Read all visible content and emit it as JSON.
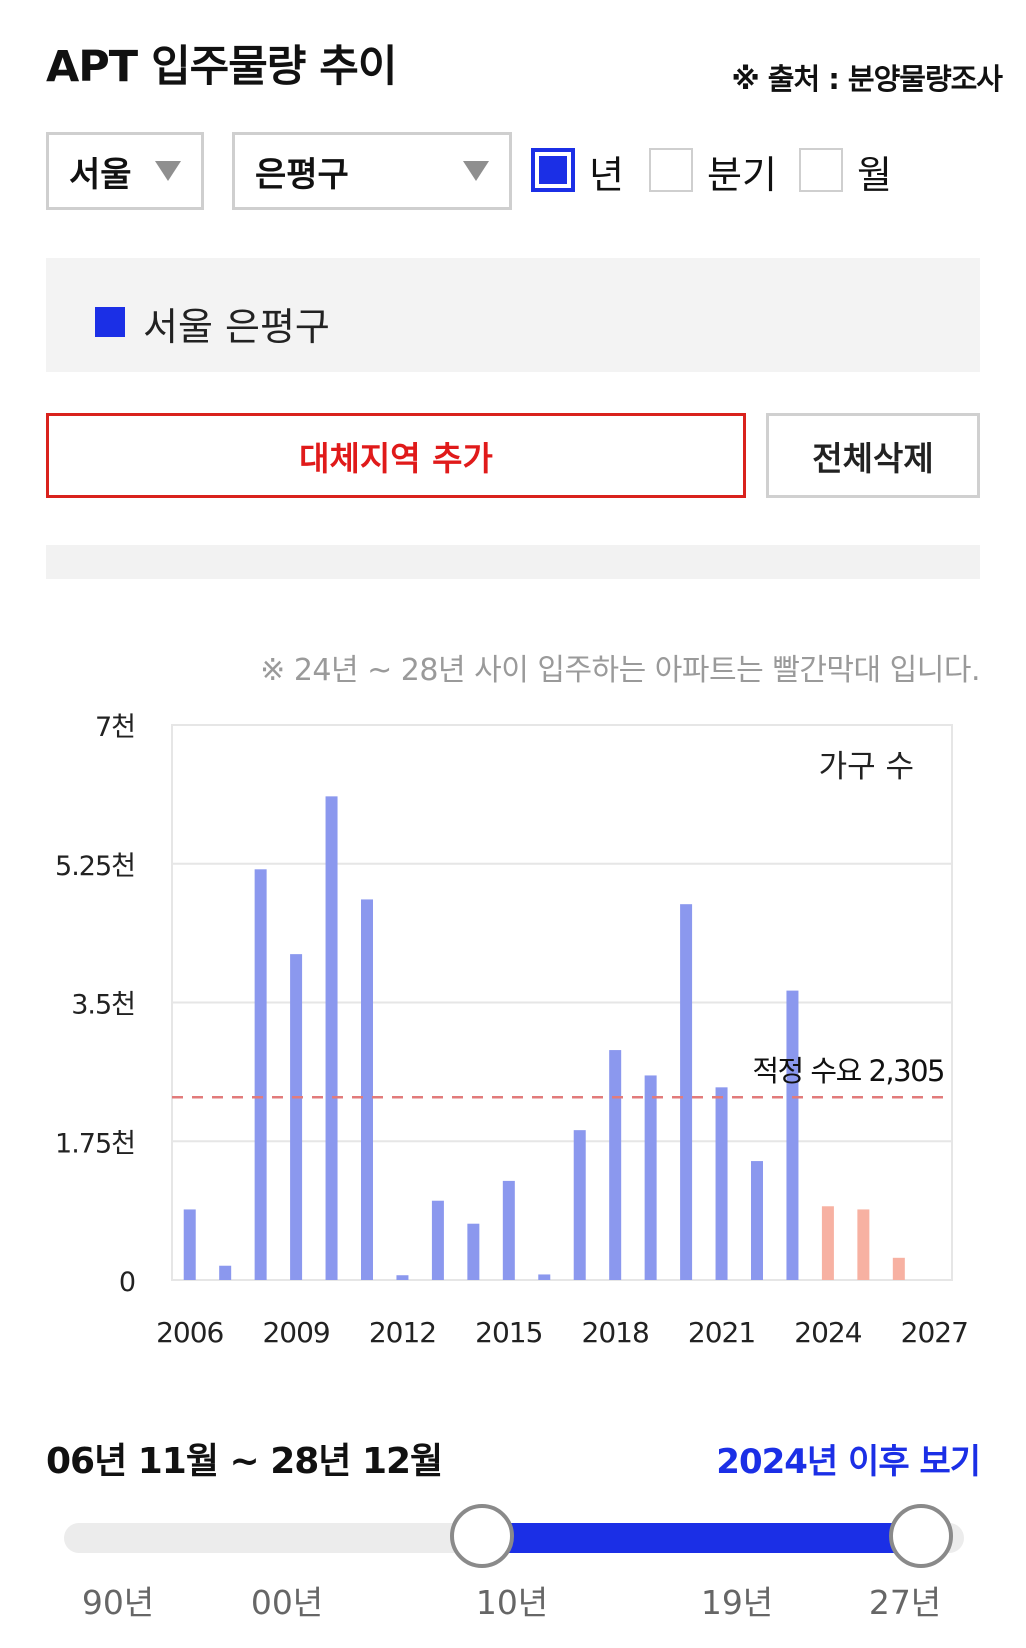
{
  "header": {
    "title": "APT 입주물량 추이",
    "source": "※ 출처 : 분양물량조사"
  },
  "filters": {
    "city": "서울",
    "district": "은평구",
    "period_options": [
      {
        "label": "년",
        "checked": true
      },
      {
        "label": "분기",
        "checked": false
      },
      {
        "label": "월",
        "checked": false
      }
    ]
  },
  "legend": {
    "label": "서울 은평구",
    "color": "#1b2fe6"
  },
  "buttons": {
    "add_region": "대체지역 추가",
    "delete_all": "전체삭제"
  },
  "chart_note": "※ 24년 ~ 28년 사이 입주하는 아파트는 빨간막대 입니다.",
  "chart_data": {
    "type": "bar",
    "series_label": "가구 수",
    "categories": [
      "2006",
      "2007",
      "2008",
      "2009",
      "2010",
      "2011",
      "2012",
      "2013",
      "2014",
      "2015",
      "2016",
      "2017",
      "2018",
      "2019",
      "2020",
      "2021",
      "2022",
      "2023",
      "2024",
      "2025",
      "2026",
      "2027"
    ],
    "values": [
      890,
      180,
      5180,
      4110,
      6100,
      4800,
      60,
      1000,
      710,
      1250,
      70,
      1890,
      2900,
      2580,
      4740,
      2430,
      1500,
      3650,
      930,
      890,
      280,
      0
    ],
    "highlight_from": "2024",
    "colors": {
      "normal": "#8b98ee",
      "highlight": "#f7b1a2",
      "reference_line": "#e27b7b"
    },
    "x_tick_labels": [
      "2006",
      "2009",
      "2012",
      "2015",
      "2018",
      "2021",
      "2024",
      "2027"
    ],
    "y_ticks": [
      0,
      1750,
      3500,
      5250,
      7000
    ],
    "y_tick_labels": [
      "0",
      "1.75천",
      "3.5천",
      "5.25천",
      "7천"
    ],
    "ylim": [
      0,
      7000
    ],
    "reference_line": {
      "value": 2305,
      "label": "적정 수요 2,305"
    },
    "grid": true
  },
  "range_slider": {
    "range_text": "06년 11월 ~ 28년 12월",
    "after_link": "2024년 이후 보기",
    "labels": [
      "90년",
      "00년",
      "10년",
      "19년",
      "27년"
    ],
    "selected_start": "10년",
    "selected_end": "27년"
  }
}
